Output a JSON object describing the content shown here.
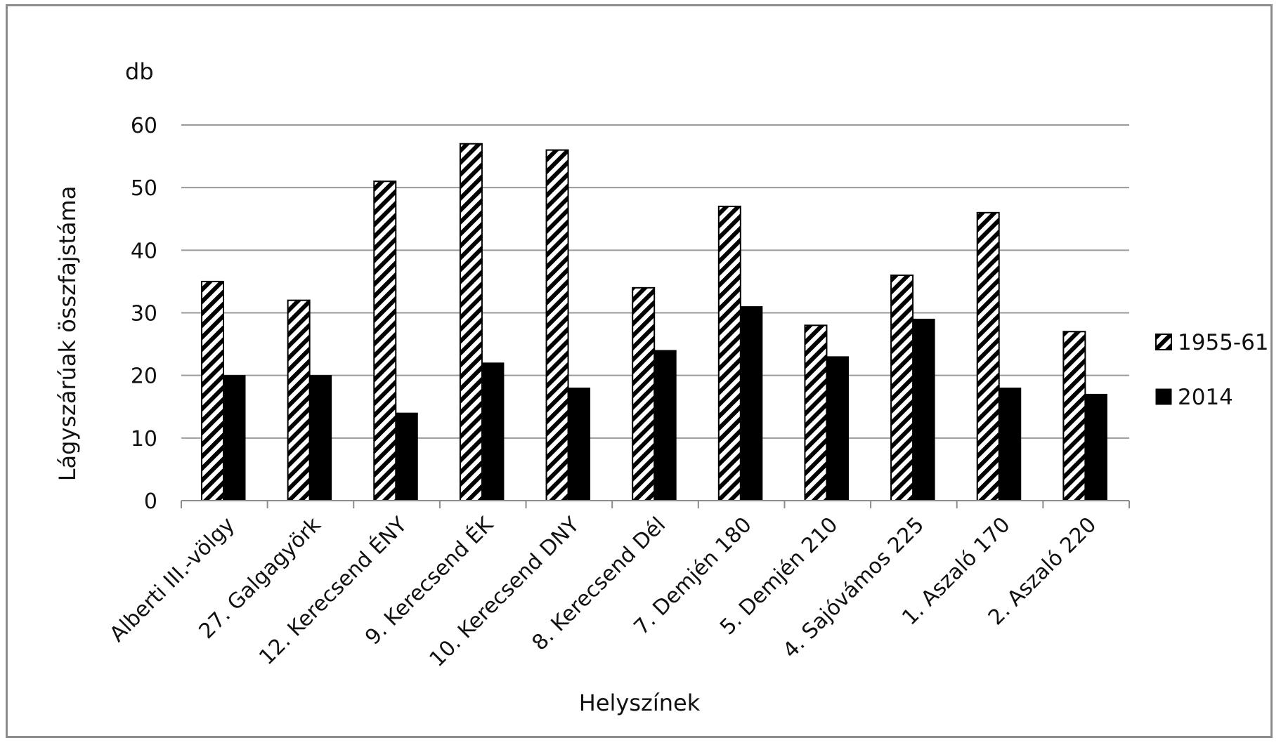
{
  "chart_data": {
    "type": "bar",
    "title": "",
    "unit_label": "db",
    "ylabel": "Lágyszárúak összfajstáma",
    "xlabel": "Helyszínek",
    "ylim": [
      0,
      60
    ],
    "yticks": [
      0,
      10,
      20,
      30,
      40,
      50,
      60
    ],
    "grid": true,
    "legend_position": "right",
    "categories": [
      "Alberti III.-völgy",
      "27. Galgagyörk",
      "12. Kerecsend ÉNY",
      "9. Kerecsend ÉK",
      "10. Kerecsend DNY",
      "8. Kerecsend Dél",
      "7. Demjén 180",
      "5. Demjén 210",
      "4. Sajóvámos 225",
      "1. Aszaló 170",
      "2. Aszaló 220"
    ],
    "series": [
      {
        "name": "1955-61",
        "pattern": "diagonal-hatch",
        "color": "#000000",
        "values": [
          35,
          32,
          51,
          57,
          56,
          34,
          47,
          28,
          36,
          46,
          27
        ]
      },
      {
        "name": "2014",
        "pattern": "solid",
        "color": "#000000",
        "values": [
          20,
          20,
          14,
          22,
          18,
          24,
          31,
          23,
          29,
          18,
          17
        ]
      }
    ]
  }
}
